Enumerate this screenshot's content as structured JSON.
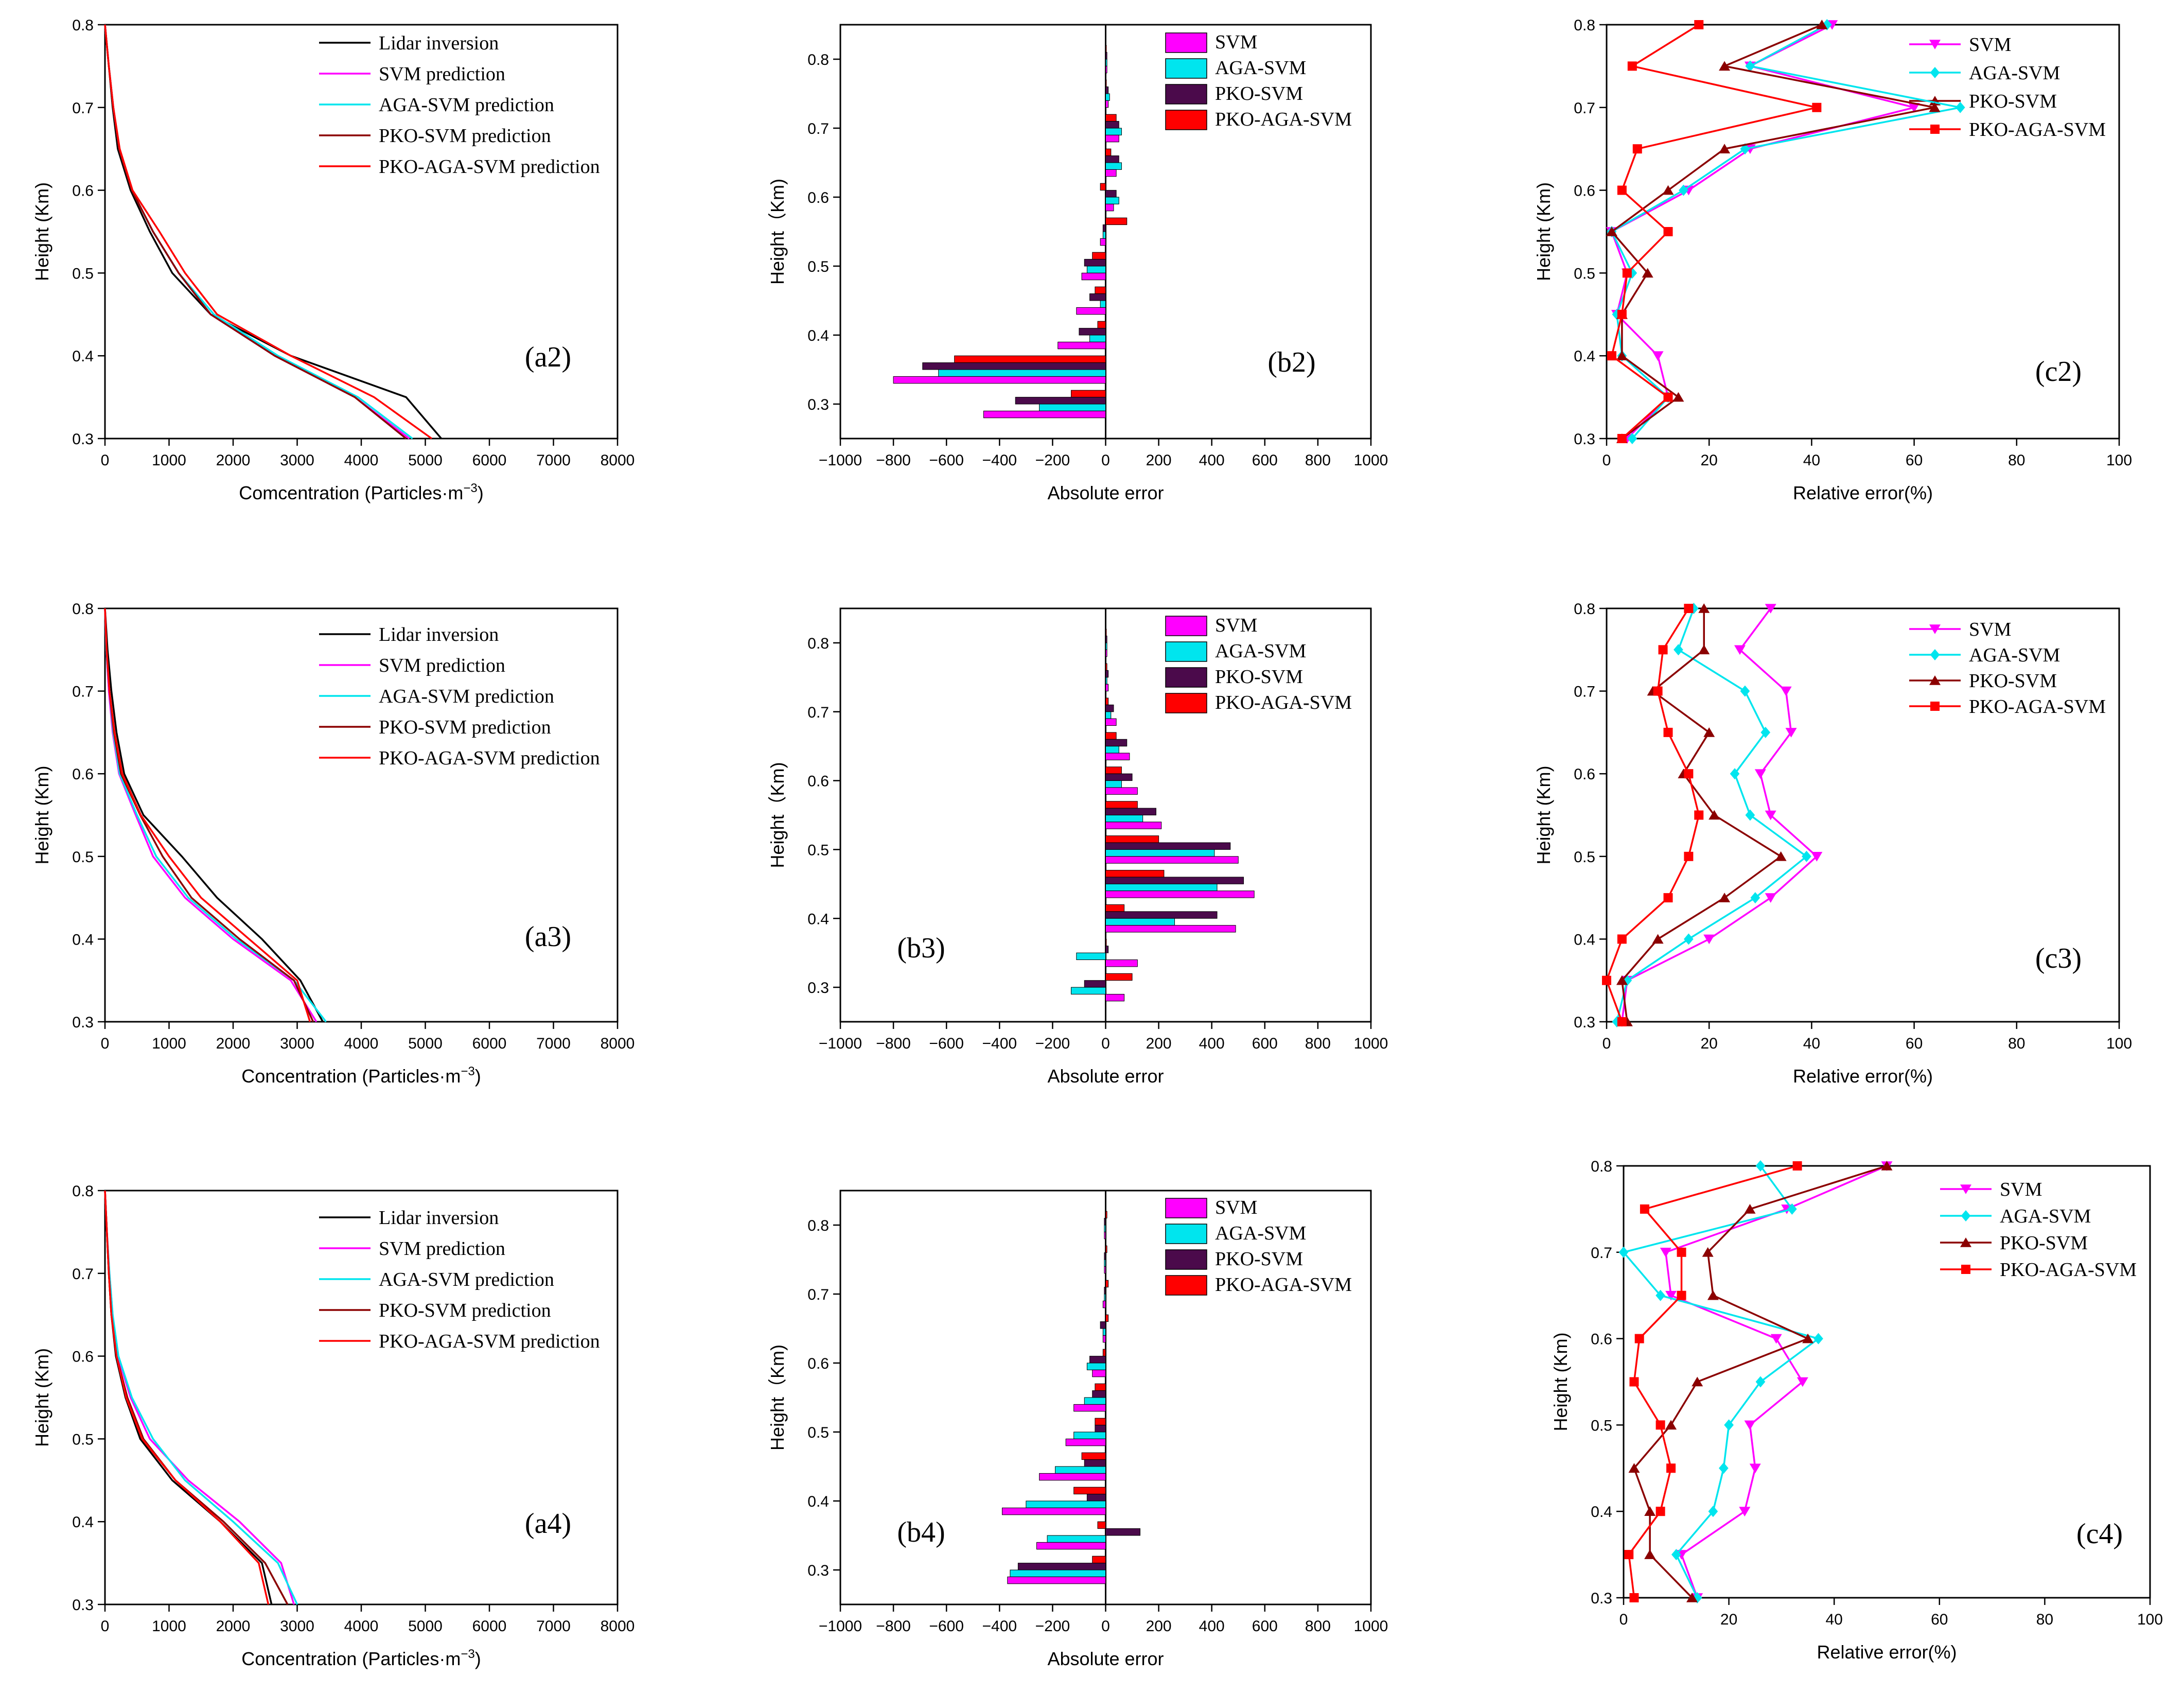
{
  "colors": {
    "lidar": "#000000",
    "svm": "#ff00ff",
    "aga": "#00e5ee",
    "pko": "#8b0000",
    "pkoaga": "#ff0000",
    "pko_bar": "#4b0a4b"
  },
  "chart_data": [
    {
      "id": "a2",
      "type": "line",
      "panel_label": "(a2)",
      "xlabel": "Comcentration (Particles·m",
      "xlabel_sup": "−3",
      "xlabel_close": ")",
      "ylabel": "Height (Km)",
      "xlim": [
        0,
        8000
      ],
      "ylim": [
        0.3,
        0.8
      ],
      "xticks": [
        "0",
        "1000",
        "2000",
        "3000",
        "4000",
        "5000",
        "6000",
        "7000",
        "8000"
      ],
      "yticks": [
        "0.3",
        "0.4",
        "0.5",
        "0.6",
        "0.7",
        "0.8"
      ],
      "legend": [
        "Lidar inversion",
        "SVM prediction",
        "AGA-SVM prediction",
        "PKO-SVM prediction",
        "PKO-AGA-SVM prediction"
      ],
      "y": [
        0.3,
        0.35,
        0.4,
        0.45,
        0.5,
        0.55,
        0.6,
        0.65,
        0.7,
        0.75,
        0.8
      ],
      "series": [
        {
          "name": "Lidar inversion",
          "key": "lidar",
          "values": [
            5250,
            4700,
            2900,
            1650,
            1050,
            700,
            400,
            200,
            120,
            60,
            0
          ]
        },
        {
          "name": "SVM prediction",
          "key": "svm",
          "values": [
            4750,
            3900,
            2650,
            1650,
            1150,
            750,
            420,
            220,
            130,
            60,
            0
          ]
        },
        {
          "name": "AGA-SVM prediction",
          "key": "aga",
          "values": [
            4800,
            3950,
            2700,
            1700,
            1150,
            750,
            420,
            220,
            130,
            60,
            0
          ]
        },
        {
          "name": "PKO-SVM prediction",
          "key": "pko",
          "values": [
            4700,
            3900,
            2650,
            1650,
            1150,
            750,
            420,
            220,
            130,
            60,
            0
          ]
        },
        {
          "name": "PKO-AGA-SVM prediction",
          "key": "pkoaga",
          "values": [
            5100,
            4200,
            2900,
            1750,
            1250,
            850,
            430,
            230,
            130,
            60,
            0
          ]
        }
      ]
    },
    {
      "id": "b2",
      "type": "bar",
      "panel_label": "(b2)",
      "xlabel": "Absolute error",
      "ylabel": "Height（Km)",
      "xlim": [
        -1000,
        1000
      ],
      "ylim": [
        0.25,
        0.85
      ],
      "xticks": [
        "−1000",
        "−800",
        "−600",
        "−400",
        "−200",
        "0",
        "200",
        "400",
        "600",
        "800",
        "1000"
      ],
      "yticks": [
        "0.3",
        "0.4",
        "0.5",
        "0.6",
        "0.7",
        "0.8"
      ],
      "legend": [
        "SVM",
        "AGA-SVM",
        "PKO-SVM",
        "PKO-AGA-SVM"
      ],
      "y": [
        0.3,
        0.35,
        0.4,
        0.45,
        0.5,
        0.55,
        0.6,
        0.65,
        0.7,
        0.75,
        0.8
      ],
      "series": [
        {
          "name": "SVM",
          "key": "svm",
          "values": [
            -460,
            -800,
            -180,
            -110,
            -90,
            -20,
            30,
            40,
            50,
            10,
            5
          ]
        },
        {
          "name": "AGA-SVM",
          "key": "aga",
          "values": [
            -250,
            -630,
            -60,
            -20,
            -70,
            -10,
            50,
            60,
            60,
            15,
            5
          ]
        },
        {
          "name": "PKO-SVM",
          "key": "pko_bar",
          "values": [
            -340,
            -690,
            -100,
            -60,
            -80,
            -10,
            40,
            50,
            50,
            10,
            5
          ]
        },
        {
          "name": "PKO-AGA-SVM",
          "key": "pkoaga",
          "values": [
            -130,
            -570,
            -30,
            -40,
            -50,
            80,
            -20,
            20,
            40,
            0,
            0
          ]
        }
      ]
    },
    {
      "id": "c2",
      "type": "line",
      "panel_label": "(c2)",
      "xlabel": "Relative error(%)",
      "ylabel": "Height (Km)",
      "xlim": [
        0,
        100
      ],
      "ylim": [
        0.3,
        0.8
      ],
      "xticks": [
        "0",
        "20",
        "40",
        "60",
        "80",
        "100"
      ],
      "yticks": [
        "0.3",
        "0.4",
        "0.5",
        "0.6",
        "0.7",
        "0.8"
      ],
      "legend": [
        "SVM",
        "AGA-SVM",
        "PKO-SVM",
        "PKO-AGA-SVM"
      ],
      "y": [
        0.3,
        0.35,
        0.4,
        0.45,
        0.5,
        0.55,
        0.6,
        0.65,
        0.7,
        0.75,
        0.8
      ],
      "series": [
        {
          "name": "SVM",
          "key": "svm",
          "marker": "tri-down",
          "values": [
            4,
            12,
            10,
            2,
            4,
            1,
            16,
            28,
            60,
            28,
            44
          ]
        },
        {
          "name": "AGA-SVM",
          "key": "aga",
          "marker": "diamond",
          "values": [
            5,
            12,
            3,
            2,
            5,
            1,
            15,
            27,
            69,
            28,
            43
          ]
        },
        {
          "name": "PKO-SVM",
          "key": "pko",
          "marker": "tri-up",
          "values": [
            3,
            14,
            3,
            3,
            8,
            1,
            12,
            23,
            64,
            23,
            42
          ]
        },
        {
          "name": "PKO-AGA-SVM",
          "key": "pkoaga",
          "marker": "square",
          "values": [
            3,
            12,
            1,
            3,
            4,
            12,
            3,
            6,
            41,
            5,
            18
          ]
        }
      ]
    },
    {
      "id": "a3",
      "type": "line",
      "panel_label": "(a3)",
      "xlabel": "Concentration (Particles·m",
      "xlabel_sup": "−3",
      "xlabel_close": ")",
      "ylabel": "Height (Km)",
      "xlim": [
        0,
        8000
      ],
      "ylim": [
        0.3,
        0.8
      ],
      "xticks": [
        "0",
        "1000",
        "2000",
        "3000",
        "4000",
        "5000",
        "6000",
        "7000",
        "8000"
      ],
      "yticks": [
        "0.3",
        "0.4",
        "0.5",
        "0.6",
        "0.7",
        "0.8"
      ],
      "legend": [
        "Lidar inversion",
        "SVM prediction",
        "AGA-SVM prediction",
        "PKO-SVM prediction",
        "PKO-AGA-SVM prediction"
      ],
      "y": [
        0.3,
        0.35,
        0.4,
        0.45,
        0.5,
        0.55,
        0.6,
        0.65,
        0.7,
        0.75,
        0.8
      ],
      "series": [
        {
          "name": "Lidar inversion",
          "key": "lidar",
          "values": [
            3400,
            3050,
            2450,
            1750,
            1200,
            600,
            300,
            180,
            100,
            40,
            0
          ]
        },
        {
          "name": "SVM prediction",
          "key": "svm",
          "values": [
            3300,
            2900,
            2000,
            1250,
            750,
            480,
            220,
            120,
            60,
            20,
            0
          ]
        },
        {
          "name": "AGA-SVM prediction",
          "key": "aga",
          "values": [
            3450,
            2950,
            2050,
            1300,
            800,
            500,
            230,
            130,
            70,
            20,
            0
          ]
        },
        {
          "name": "PKO-SVM prediction",
          "key": "pko",
          "values": [
            3250,
            2950,
            2100,
            1350,
            900,
            550,
            250,
            140,
            70,
            25,
            0
          ]
        },
        {
          "name": "PKO-AGA-SVM prediction",
          "key": "pkoaga",
          "values": [
            3200,
            3000,
            2250,
            1500,
            1000,
            560,
            270,
            150,
            70,
            25,
            0
          ]
        }
      ]
    },
    {
      "id": "b3",
      "type": "bar",
      "panel_label": "(b3)",
      "xlabel": "Absolute error",
      "ylabel": "Height（Km)",
      "xlim": [
        -1000,
        1000
      ],
      "ylim": [
        0.25,
        0.85
      ],
      "xticks": [
        "−1000",
        "−800",
        "−600",
        "−400",
        "−200",
        "0",
        "200",
        "400",
        "600",
        "800",
        "1000"
      ],
      "yticks": [
        "0.3",
        "0.4",
        "0.5",
        "0.6",
        "0.7",
        "0.8"
      ],
      "legend": [
        "SVM",
        "AGA-SVM",
        "PKO-SVM",
        "PKO-AGA-SVM"
      ],
      "y": [
        0.3,
        0.35,
        0.4,
        0.45,
        0.5,
        0.55,
        0.6,
        0.65,
        0.7,
        0.75,
        0.8
      ],
      "series": [
        {
          "name": "SVM",
          "key": "svm",
          "values": [
            70,
            120,
            490,
            560,
            500,
            210,
            120,
            90,
            40,
            10,
            5
          ]
        },
        {
          "name": "AGA-SVM",
          "key": "aga",
          "values": [
            -130,
            -110,
            260,
            420,
            410,
            140,
            60,
            50,
            20,
            5,
            5
          ]
        },
        {
          "name": "PKO-SVM",
          "key": "pko_bar",
          "values": [
            -80,
            10,
            420,
            520,
            470,
            190,
            100,
            80,
            30,
            10,
            5
          ]
        },
        {
          "name": "PKO-AGA-SVM",
          "key": "pkoaga",
          "values": [
            100,
            0,
            70,
            220,
            200,
            120,
            60,
            40,
            10,
            5,
            0
          ]
        }
      ]
    },
    {
      "id": "c3",
      "type": "line",
      "panel_label": "(c3)",
      "xlabel": "Relative error(%)",
      "ylabel": "Height (Km)",
      "xlim": [
        0,
        100
      ],
      "ylim": [
        0.3,
        0.8
      ],
      "xticks": [
        "0",
        "20",
        "40",
        "60",
        "80",
        "100"
      ],
      "yticks": [
        "0.3",
        "0.4",
        "0.5",
        "0.6",
        "0.7",
        "0.8"
      ],
      "legend": [
        "SVM",
        "AGA-SVM",
        "PKO-SVM",
        "PKO-AGA-SVM"
      ],
      "y": [
        0.3,
        0.35,
        0.4,
        0.45,
        0.5,
        0.55,
        0.6,
        0.65,
        0.7,
        0.75,
        0.8
      ],
      "series": [
        {
          "name": "SVM",
          "key": "svm",
          "marker": "tri-down",
          "values": [
            3,
            4,
            20,
            32,
            41,
            32,
            30,
            36,
            35,
            26,
            32
          ]
        },
        {
          "name": "AGA-SVM",
          "key": "aga",
          "marker": "diamond",
          "values": [
            2,
            4,
            16,
            29,
            39,
            28,
            25,
            31,
            27,
            14,
            17
          ]
        },
        {
          "name": "PKO-SVM",
          "key": "pko",
          "marker": "tri-up",
          "values": [
            4,
            3,
            10,
            23,
            34,
            21,
            15,
            20,
            9,
            19,
            19
          ]
        },
        {
          "name": "PKO-AGA-SVM",
          "key": "pkoaga",
          "marker": "square",
          "values": [
            3,
            0,
            3,
            12,
            16,
            18,
            16,
            12,
            10,
            11,
            16
          ]
        }
      ]
    },
    {
      "id": "a4",
      "type": "line",
      "panel_label": "(a4)",
      "xlabel": "Concentration (Particles·m",
      "xlabel_sup": "−3",
      "xlabel_close": ")",
      "ylabel": "Height (Km)",
      "xlim": [
        0,
        8000
      ],
      "ylim": [
        0.3,
        0.8
      ],
      "xticks": [
        "0",
        "1000",
        "2000",
        "3000",
        "4000",
        "5000",
        "6000",
        "7000",
        "8000"
      ],
      "yticks": [
        "0.3",
        "0.4",
        "0.5",
        "0.6",
        "0.7",
        "0.8"
      ],
      "legend": [
        "Lidar inversion",
        "SVM prediction",
        "AGA-SVM prediction",
        "PKO-SVM prediction",
        "PKO-AGA-SVM prediction"
      ],
      "y": [
        0.3,
        0.35,
        0.4,
        0.45,
        0.5,
        0.55,
        0.6,
        0.65,
        0.7,
        0.75,
        0.8
      ],
      "series": [
        {
          "name": "Lidar inversion",
          "key": "lidar",
          "values": [
            2600,
            2450,
            1800,
            1050,
            550,
            320,
            170,
            100,
            60,
            30,
            0
          ]
        },
        {
          "name": "SVM prediction",
          "key": "svm",
          "values": [
            2950,
            2750,
            2100,
            1300,
            700,
            400,
            200,
            120,
            70,
            30,
            0
          ]
        },
        {
          "name": "AGA-SVM prediction",
          "key": "aga",
          "values": [
            3000,
            2700,
            2000,
            1250,
            750,
            420,
            210,
            120,
            70,
            30,
            0
          ]
        },
        {
          "name": "PKO-SVM prediction",
          "key": "pko",
          "values": [
            2850,
            2500,
            1850,
            1100,
            600,
            350,
            180,
            100,
            60,
            30,
            0
          ]
        },
        {
          "name": "PKO-AGA-SVM prediction",
          "key": "pkoaga",
          "values": [
            2550,
            2400,
            1800,
            1100,
            580,
            330,
            180,
            100,
            60,
            30,
            0
          ]
        }
      ]
    },
    {
      "id": "b4",
      "type": "bar",
      "panel_label": "(b4)",
      "xlabel": "Absolute error",
      "ylabel": "Height（Km)",
      "xlim": [
        -1000,
        1000
      ],
      "ylim": [
        0.25,
        0.85
      ],
      "xticks": [
        "−1000",
        "−800",
        "−600",
        "−400",
        "−200",
        "0",
        "200",
        "400",
        "600",
        "800",
        "1000"
      ],
      "yticks": [
        "0.3",
        "0.4",
        "0.5",
        "0.6",
        "0.7",
        "0.8"
      ],
      "legend": [
        "SVM",
        "AGA-SVM",
        "PKO-SVM",
        "PKO-AGA-SVM"
      ],
      "y": [
        0.3,
        0.35,
        0.4,
        0.45,
        0.5,
        0.55,
        0.6,
        0.65,
        0.7,
        0.75,
        0.8
      ],
      "series": [
        {
          "name": "SVM",
          "key": "svm",
          "values": [
            -370,
            -260,
            -390,
            -250,
            -150,
            -120,
            -50,
            -10,
            -10,
            -5,
            -5
          ]
        },
        {
          "name": "AGA-SVM",
          "key": "aga",
          "values": [
            -360,
            -220,
            -300,
            -190,
            -120,
            -80,
            -70,
            -10,
            -5,
            -5,
            -5
          ]
        },
        {
          "name": "PKO-SVM",
          "key": "pko_bar",
          "values": [
            -330,
            130,
            -70,
            -80,
            -40,
            -50,
            -60,
            -20,
            -5,
            -5,
            -5
          ]
        },
        {
          "name": "PKO-AGA-SVM",
          "key": "pkoaga",
          "values": [
            -50,
            -30,
            -120,
            -90,
            -40,
            -40,
            -10,
            10,
            10,
            5,
            5
          ]
        }
      ]
    },
    {
      "id": "c4",
      "type": "line",
      "panel_label": "(c4)",
      "xlabel": "Relative error(%)",
      "ylabel": "Height (Km)",
      "xlim": [
        0,
        100
      ],
      "ylim": [
        0.3,
        0.8
      ],
      "xticks": [
        "0",
        "20",
        "40",
        "60",
        "80",
        "100"
      ],
      "yticks": [
        "0.3",
        "0.4",
        "0.5",
        "0.6",
        "0.7",
        "0.8"
      ],
      "legend": [
        "SVM",
        "AGA-SVM",
        "PKO-SVM",
        "PKO-AGA-SVM"
      ],
      "y": [
        0.3,
        0.35,
        0.4,
        0.45,
        0.5,
        0.55,
        0.6,
        0.65,
        0.7,
        0.75,
        0.8
      ],
      "series": [
        {
          "name": "SVM",
          "key": "svm",
          "marker": "tri-down",
          "values": [
            14,
            11,
            23,
            25,
            24,
            34,
            29,
            9,
            8,
            31,
            50
          ]
        },
        {
          "name": "AGA-SVM",
          "key": "aga",
          "marker": "diamond",
          "values": [
            14,
            10,
            17,
            19,
            20,
            26,
            37,
            7,
            0,
            32,
            26
          ]
        },
        {
          "name": "PKO-SVM",
          "key": "pko",
          "marker": "tri-up",
          "values": [
            13,
            5,
            5,
            2,
            9,
            14,
            35,
            17,
            16,
            24,
            50
          ]
        },
        {
          "name": "PKO-AGA-SVM",
          "key": "pkoaga",
          "marker": "square",
          "values": [
            2,
            1,
            7,
            9,
            7,
            2,
            3,
            11,
            11,
            4,
            33
          ]
        }
      ]
    }
  ]
}
